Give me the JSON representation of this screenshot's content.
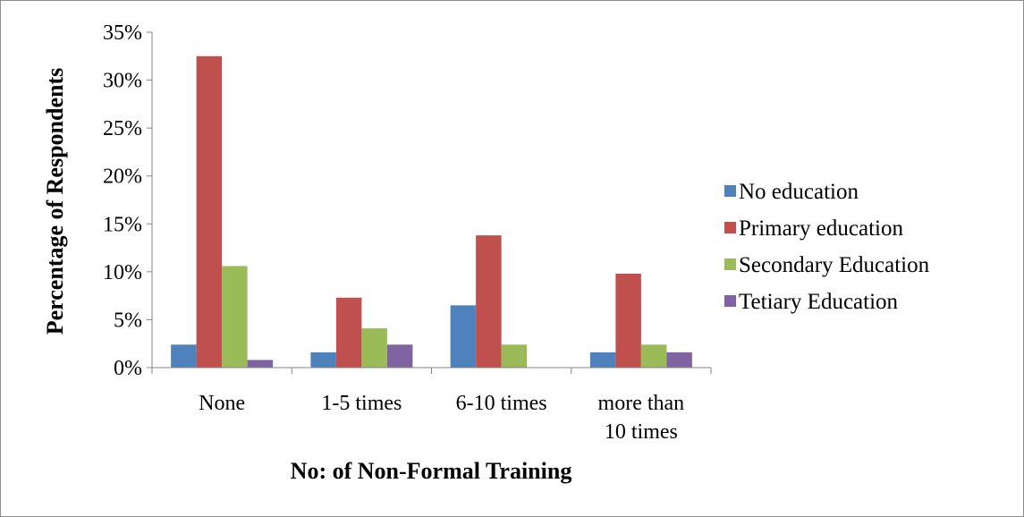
{
  "chart_data": {
    "type": "bar",
    "title": "",
    "xlabel": "No: of Non-Formal Training",
    "ylabel": "Percentage of Respondents",
    "categories": [
      [
        "None"
      ],
      [
        "1-5 times"
      ],
      [
        "6-10 times"
      ],
      [
        "more than",
        "10 times"
      ]
    ],
    "ylim": [
      0,
      35
    ],
    "yticks": [
      0,
      5,
      10,
      15,
      20,
      25,
      30,
      35
    ],
    "ytick_suffix": "%",
    "grid": false,
    "legend_position": "right",
    "series": [
      {
        "name": "No education",
        "color": "#4F81BD",
        "values": [
          2.4,
          1.6,
          6.5,
          1.6
        ]
      },
      {
        "name": "Primary education",
        "color": "#C0504D",
        "values": [
          32.5,
          7.3,
          13.8,
          9.8
        ]
      },
      {
        "name": "Secondary Education",
        "color": "#9BBB59",
        "values": [
          10.6,
          4.1,
          2.4,
          2.4
        ]
      },
      {
        "name": "Tetiary Education",
        "color": "#8064A2",
        "values": [
          0.8,
          2.4,
          0.0,
          1.6
        ]
      }
    ]
  }
}
